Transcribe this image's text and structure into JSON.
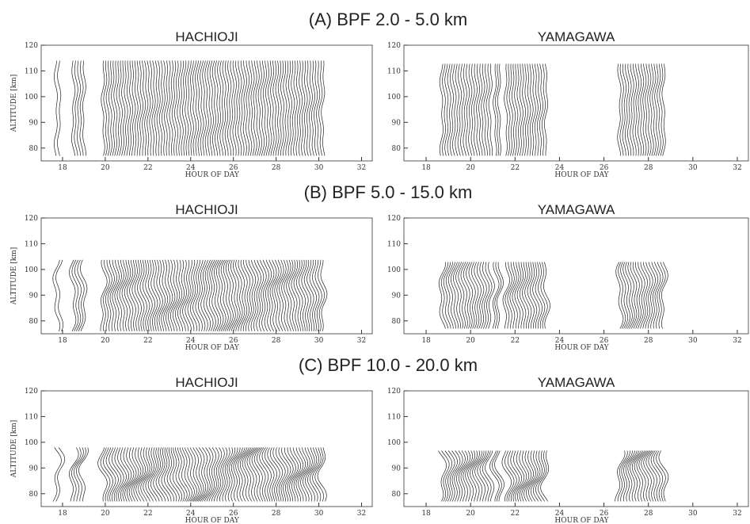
{
  "chart_data": [
    {
      "type": "wiggle",
      "title": "(A) BPF 2.0 - 5.0 km",
      "subtitle": "HACHIOJI",
      "xlabel": "HOUR OF DAY",
      "ylabel": "ALTITUDE [km]",
      "xlim": [
        17,
        32.5
      ],
      "xticks": [
        18,
        20,
        22,
        24,
        26,
        28,
        30,
        32
      ],
      "ylim": [
        75,
        120
      ],
      "yticks": [
        80,
        90,
        100,
        110,
        120
      ],
      "trace_bottom": 77,
      "trace_top": 114,
      "segments": [
        {
          "start": 17.7,
          "end": 17.85
        },
        {
          "start": 18.5,
          "end": 19.0
        },
        {
          "start": 19.9,
          "end": 30.2
        }
      ]
    },
    {
      "type": "wiggle",
      "subtitle": "YAMAGAWA",
      "xlabel": "HOUR OF DAY",
      "xlim": [
        17,
        32.5
      ],
      "xticks": [
        18,
        20,
        22,
        24,
        26,
        28,
        30,
        32
      ],
      "ylim": [
        75,
        120
      ],
      "yticks": [
        80,
        90,
        100,
        110,
        120
      ],
      "trace_bottom": 77,
      "trace_top": 113,
      "segments": [
        {
          "start": 18.7,
          "end": 20.9
        },
        {
          "start": 21.1,
          "end": 21.3
        },
        {
          "start": 21.6,
          "end": 23.4
        },
        {
          "start": 26.7,
          "end": 28.7
        }
      ]
    },
    {
      "type": "wiggle",
      "title": "(B) BPF 5.0 - 15.0 km",
      "subtitle": "HACHIOJI",
      "xlabel": "HOUR OF DAY",
      "ylabel": "ALTITUDE [km]",
      "xlim": [
        17,
        32.5
      ],
      "xticks": [
        18,
        20,
        22,
        24,
        26,
        28,
        30,
        32
      ],
      "ylim": [
        75,
        120
      ],
      "yticks": [
        80,
        90,
        100,
        110,
        120
      ],
      "trace_bottom": 76,
      "trace_top": 104,
      "segments": [
        {
          "start": 17.7,
          "end": 17.85
        },
        {
          "start": 18.5,
          "end": 19.0
        },
        {
          "start": 19.9,
          "end": 30.2
        }
      ]
    },
    {
      "type": "wiggle",
      "subtitle": "YAMAGAWA",
      "xlabel": "HOUR OF DAY",
      "xlim": [
        17,
        32.5
      ],
      "xticks": [
        18,
        20,
        22,
        24,
        26,
        28,
        30,
        32
      ],
      "ylim": [
        75,
        120
      ],
      "yticks": [
        80,
        90,
        100,
        110,
        120
      ],
      "trace_bottom": 77,
      "trace_top": 103,
      "segments": [
        {
          "start": 18.7,
          "end": 20.9
        },
        {
          "start": 21.1,
          "end": 21.3
        },
        {
          "start": 21.6,
          "end": 23.4
        },
        {
          "start": 26.7,
          "end": 28.7
        }
      ]
    },
    {
      "type": "wiggle",
      "title": "(C) BPF 10.0 - 20.0 km",
      "subtitle": "HACHIOJI",
      "xlabel": "HOUR OF DAY",
      "ylabel": "ALTITUDE [km]",
      "xlim": [
        17,
        32.5
      ],
      "xticks": [
        18,
        20,
        22,
        24,
        26,
        28,
        30,
        32
      ],
      "ylim": [
        75,
        120
      ],
      "yticks": [
        80,
        90,
        100,
        110,
        120
      ],
      "trace_bottom": 77,
      "trace_top": 98,
      "segments": [
        {
          "start": 17.7,
          "end": 17.85
        },
        {
          "start": 18.5,
          "end": 19.0
        },
        {
          "start": 19.9,
          "end": 30.2
        }
      ]
    },
    {
      "type": "wiggle",
      "subtitle": "YAMAGAWA",
      "xlabel": "HOUR OF DAY",
      "xlim": [
        17,
        32.5
      ],
      "xticks": [
        18,
        20,
        22,
        24,
        26,
        28,
        30,
        32
      ],
      "ylim": [
        75,
        120
      ],
      "yticks": [
        80,
        90,
        100,
        110,
        120
      ],
      "trace_bottom": 77,
      "trace_top": 97,
      "segments": [
        {
          "start": 18.7,
          "end": 20.9
        },
        {
          "start": 21.1,
          "end": 21.3
        },
        {
          "start": 21.6,
          "end": 23.4
        },
        {
          "start": 26.7,
          "end": 28.7
        }
      ]
    }
  ]
}
